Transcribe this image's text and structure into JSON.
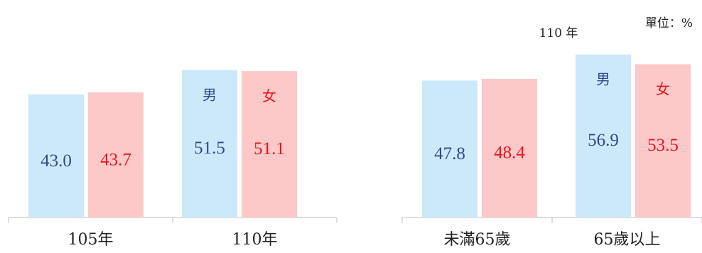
{
  "unit_label": "單位：%",
  "colors": {
    "male_fill": "#cce9fb",
    "female_fill": "#fcc8c8",
    "male_text": "#2e4a8a",
    "female_text": "#e5161f",
    "axis": "#bfbfbf"
  },
  "chart_data": [
    {
      "type": "bar",
      "title": "",
      "categories": [
        "105年",
        "110年"
      ],
      "series": [
        {
          "name": "男",
          "values": [
            43.0,
            51.5
          ]
        },
        {
          "name": "女",
          "values": [
            43.7,
            51.1
          ]
        }
      ],
      "legend_on_category": 1,
      "ylim": [
        0,
        60
      ],
      "grid": false
    },
    {
      "type": "bar",
      "title": "110 年",
      "categories": [
        "未滿65歲",
        "65歲以上"
      ],
      "series": [
        {
          "name": "男",
          "values": [
            47.8,
            56.9
          ]
        },
        {
          "name": "女",
          "values": [
            48.4,
            53.5
          ]
        }
      ],
      "legend_on_category": 1,
      "ylim": [
        0,
        60
      ],
      "grid": false
    }
  ]
}
